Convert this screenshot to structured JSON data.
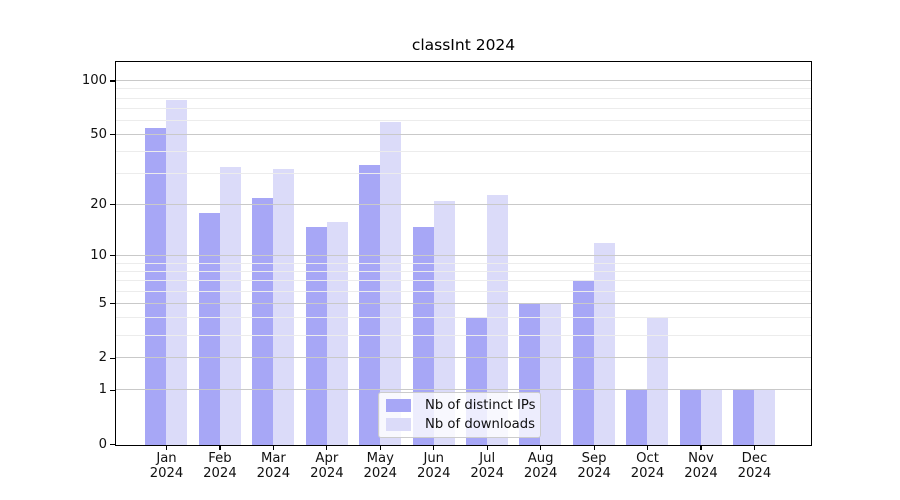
{
  "title": "classInt 2024",
  "chart_data": {
    "type": "bar",
    "title": "classInt 2024",
    "categories": [
      "Jan 2024",
      "Feb 2024",
      "Mar 2024",
      "Apr 2024",
      "May 2024",
      "Jun 2024",
      "Jul 2024",
      "Aug 2024",
      "Sep 2024",
      "Oct 2024",
      "Nov 2024",
      "Dec 2024"
    ],
    "series": [
      {
        "name": "Nb of distinct IPs",
        "color": "#a7a7f6",
        "values": [
          55,
          18,
          22,
          15,
          34,
          15,
          4,
          5,
          7,
          1,
          1,
          1
        ]
      },
      {
        "name": "Nb of downloads",
        "color": "#dbdbf9",
        "values": [
          79,
          33,
          32,
          16,
          59,
          21,
          23,
          5,
          12,
          4,
          1,
          1
        ]
      }
    ],
    "xlabel": "",
    "ylabel": "",
    "y_scale": "log1p",
    "y_major_ticks": [
      0,
      1,
      2,
      5,
      10,
      20,
      50,
      100
    ],
    "y_minor_gridlines": [
      3,
      4,
      6,
      7,
      8,
      9,
      30,
      40,
      60,
      70,
      80,
      90
    ],
    "ylim": [
      0,
      120
    ],
    "grid": "horizontal, drawn over bars",
    "legend_position": "lower center inside plot"
  },
  "legend": {
    "items": [
      "Nb of distinct IPs",
      "Nb of downloads"
    ]
  },
  "colors": {
    "bar_distinct_ips": "#a7a7f6",
    "bar_downloads": "#dbdbf9",
    "grid_major": "#c9c9c9",
    "grid_minor": "#ececec",
    "spine": "#000000",
    "text": "#111111",
    "legend_border": "#cccccc",
    "background": "#ffffff"
  }
}
